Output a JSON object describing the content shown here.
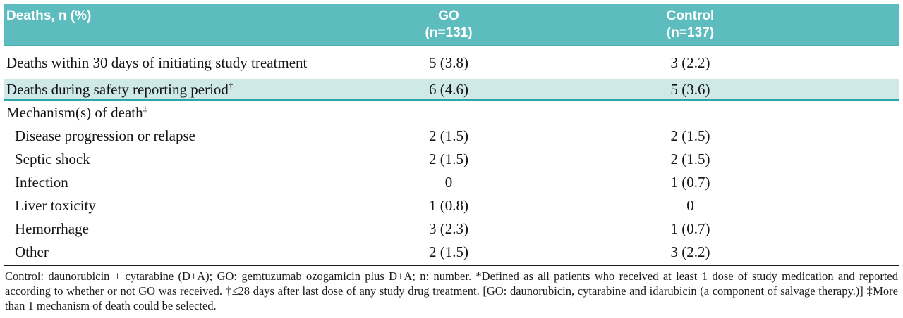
{
  "colors": {
    "header_teal": "#5dbcbd",
    "header_edge": "#4bafb0",
    "row_highlight": "#cfe9e9",
    "highlight_rule": "#2ba7a8",
    "dark_rule": "#1b1b1b",
    "bottom_rule": "#9a9a9a"
  },
  "header": {
    "col_label": "Deaths, n (%)",
    "go_line1": "GO",
    "go_line2": "(n=131)",
    "control_line1": "Control",
    "control_line2": "(n=137)"
  },
  "rows": [
    {
      "label": "Deaths within 30 days of initiating study treatment",
      "sup": "",
      "go": "5 (3.8)",
      "control": "3 (2.2)"
    },
    {
      "label": "Deaths during safety reporting period",
      "sup": "†",
      "go": "6 (4.6)",
      "control": "5 (3.6)"
    },
    {
      "label": "Mechanism(s) of death",
      "sup": "‡",
      "go": "",
      "control": ""
    },
    {
      "label": "Disease progression or relapse",
      "sup": "",
      "go": "2 (1.5)",
      "control": "2 (1.5)"
    },
    {
      "label": "Septic shock",
      "sup": "",
      "go": "2 (1.5)",
      "control": "2 (1.5)"
    },
    {
      "label": "Infection",
      "sup": "",
      "go": "0",
      "control": "1 (0.7)"
    },
    {
      "label": "Liver toxicity",
      "sup": "",
      "go": "1 (0.8)",
      "control": "0"
    },
    {
      "label": "Hemorrhage",
      "sup": "",
      "go": "3 (2.3)",
      "control": "1 (0.7)"
    },
    {
      "label": "Other",
      "sup": "",
      "go": "2 (1.5)",
      "control": "3 (2.2)"
    }
  ],
  "footnote": "Control: daunorubicin + cytarabine (D+A); GO: gemtuzumab ozogamicin plus D+A; n: number. *Defined as all patients who received at least 1 dose of study medication and reported according to whether or not GO was received. †≤28 days after last dose of any study drug treatment. [GO: daunorubicin, cytarabine and idarubicin (a component of salvage therapy.)] ‡More than 1 mechanism of death could be selected."
}
